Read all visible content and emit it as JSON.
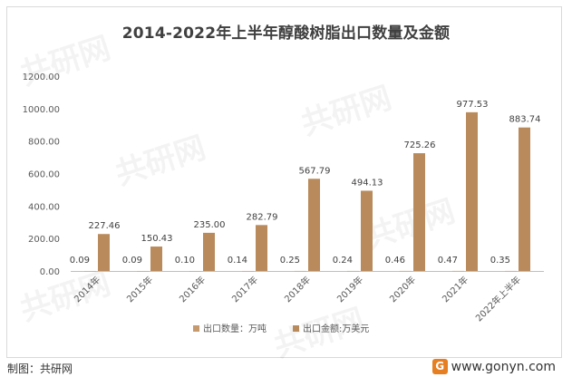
{
  "footer": {
    "source": "制图：共研网",
    "site": "www.gonyn.com",
    "logo_glyph": "G"
  },
  "watermark_text": "共研网",
  "colors": {
    "series1": "#c69a6d",
    "series2": "#b98a5b",
    "axis": "#bfbfbf"
  },
  "chart_data": {
    "type": "bar",
    "title": "2014-2022年上半年醇酸树脂出口数量及金额",
    "categories": [
      "2014年",
      "2015年",
      "2016年",
      "2017年",
      "2018年",
      "2019年",
      "2020年",
      "2021年",
      "2022年上半年"
    ],
    "series": [
      {
        "name": "出口数量：万吨",
        "values": [
          0.09,
          0.09,
          0.1,
          0.14,
          0.25,
          0.24,
          0.46,
          0.47,
          0.35
        ],
        "labels": [
          "0.09",
          "0.09",
          "0.10",
          "0.14",
          "0.25",
          "0.24",
          "0.46",
          "0.47",
          "0.35"
        ]
      },
      {
        "name": "出口金额:万美元",
        "values": [
          227.46,
          150.43,
          235.0,
          282.79,
          567.79,
          494.13,
          725.26,
          977.53,
          883.74
        ],
        "labels": [
          "227.46",
          "150.43",
          "235.00",
          "282.79",
          "567.79",
          "494.13",
          "725.26",
          "977.53",
          "883.74"
        ]
      }
    ],
    "ylim": [
      0,
      1200
    ],
    "yticks": [
      "0.00",
      "200.00",
      "400.00",
      "600.00",
      "800.00",
      "1000.00",
      "1200.00"
    ],
    "xlabel": "",
    "ylabel": "",
    "legend": "bottom",
    "grid": false
  }
}
